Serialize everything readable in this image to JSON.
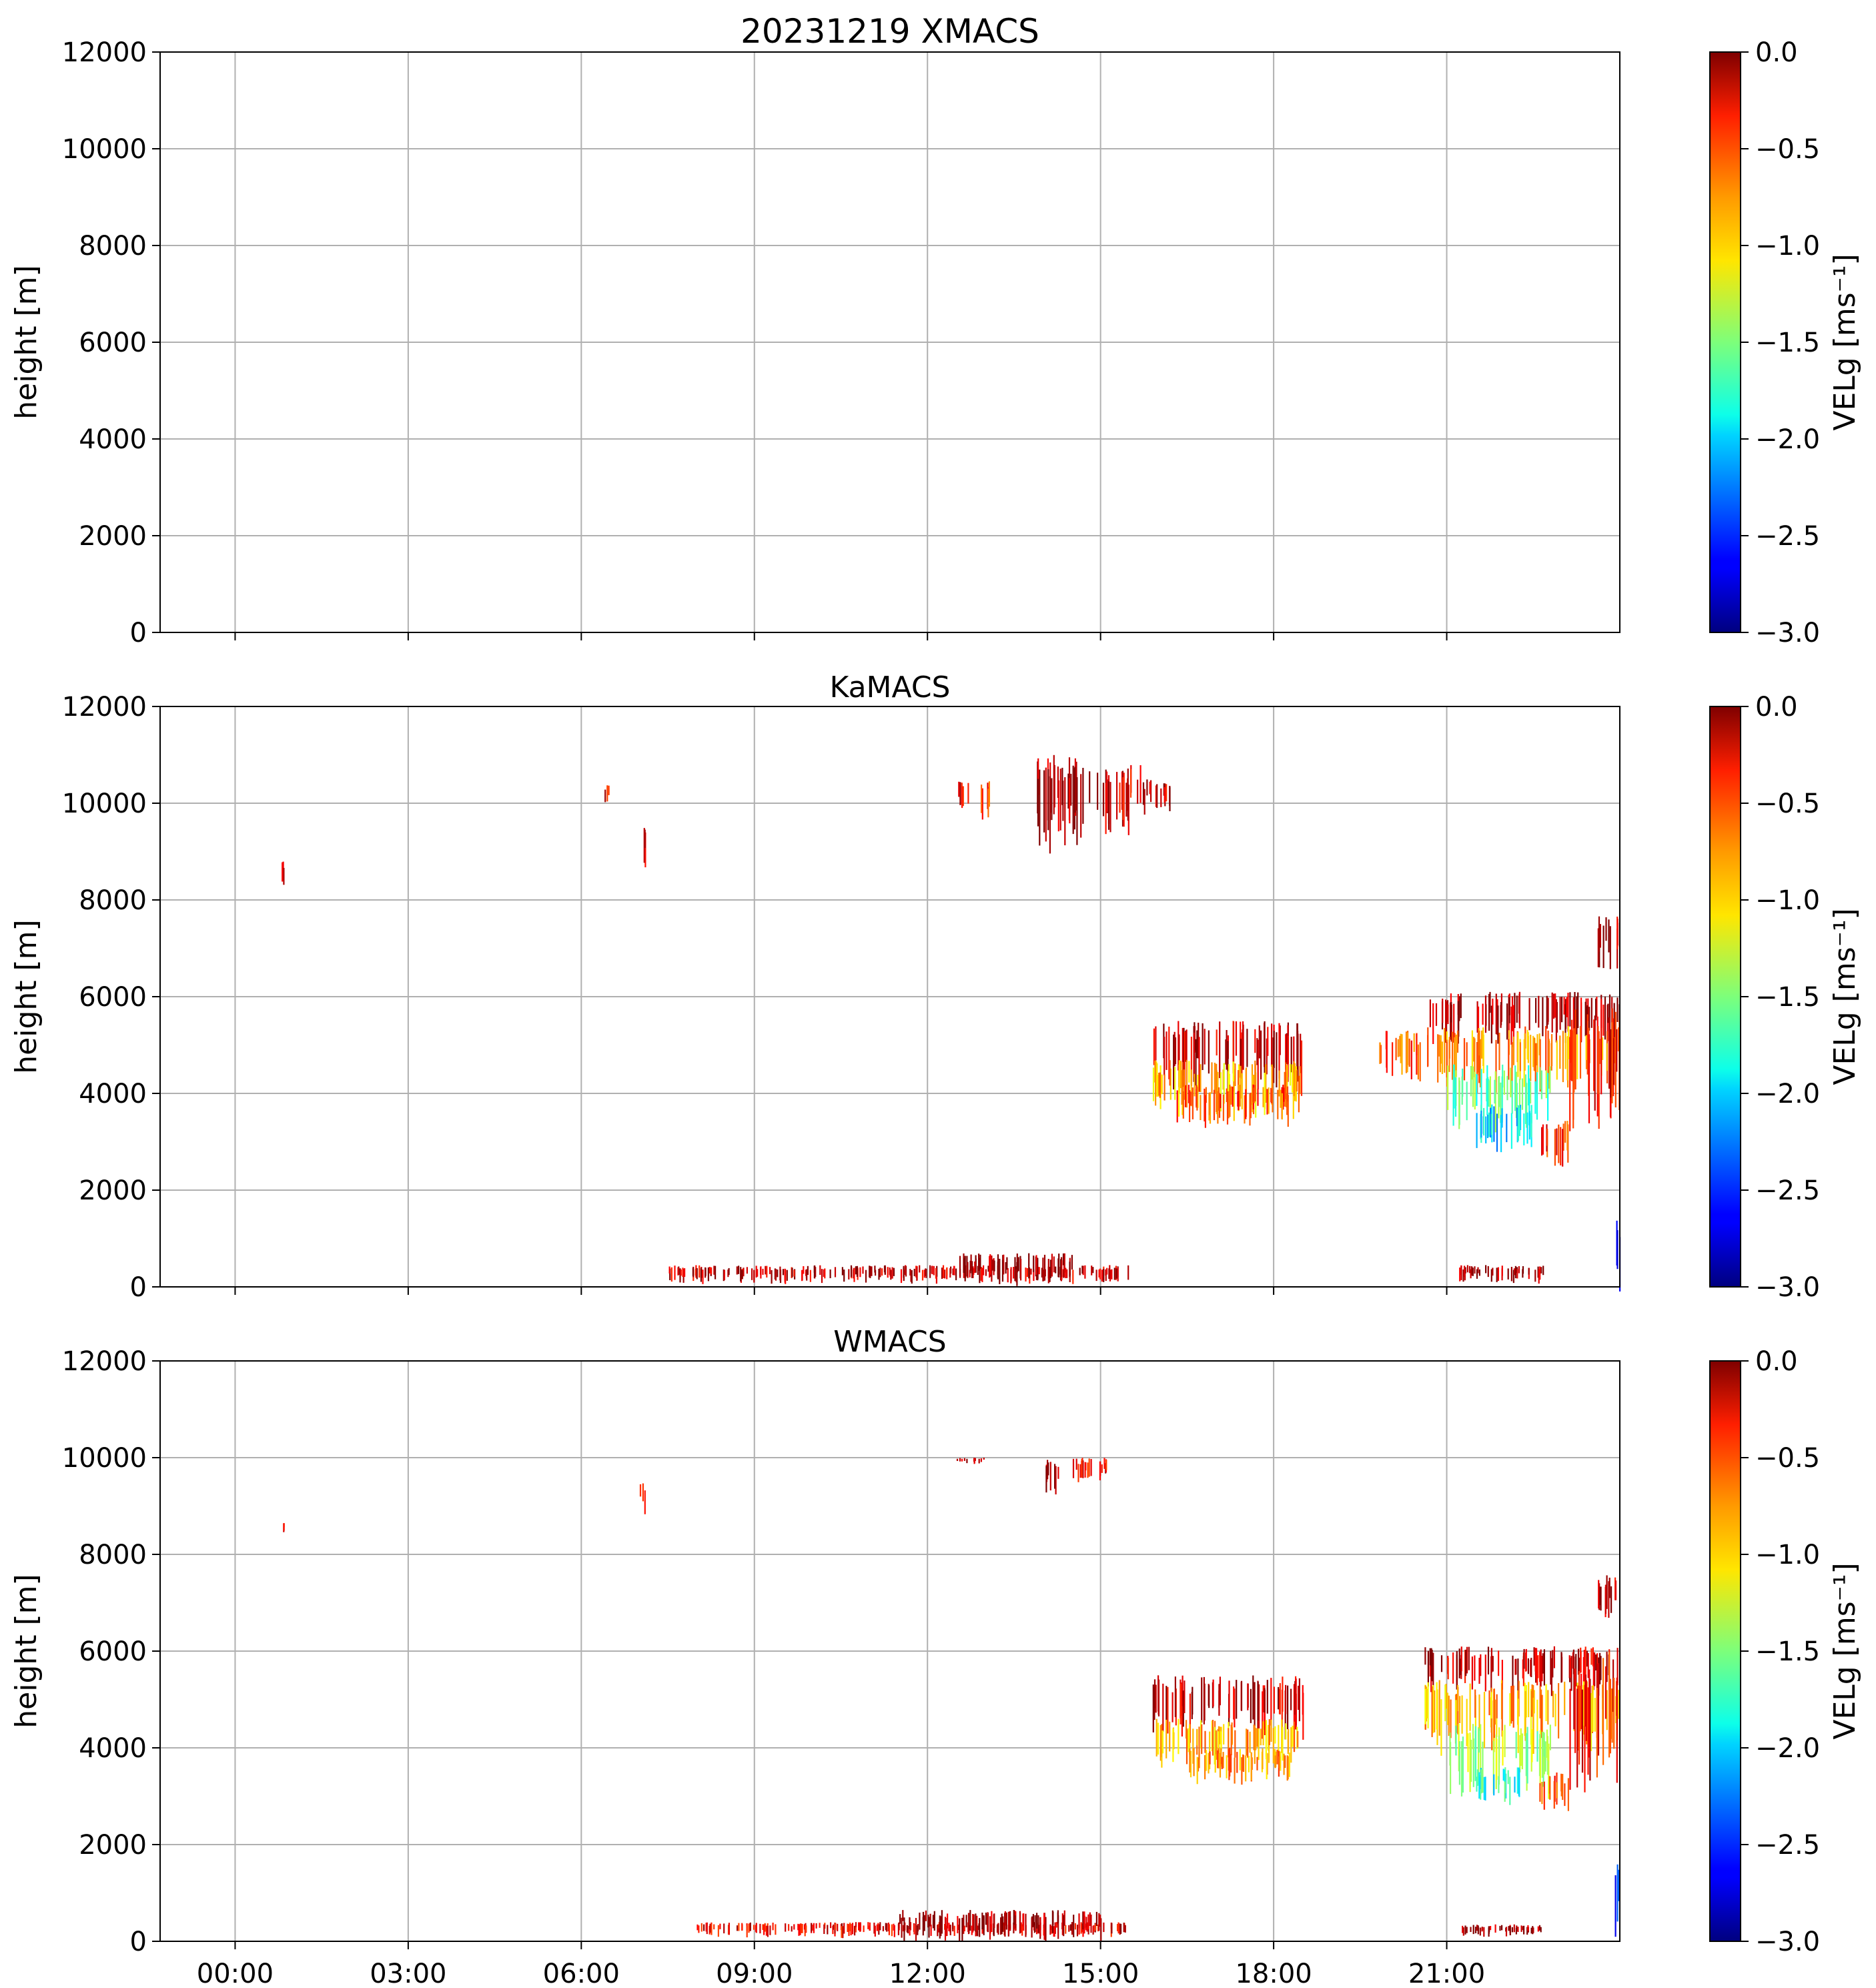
{
  "figure": {
    "title": "20231219 XMACS"
  },
  "chart_data": [
    {
      "type": "heatmap",
      "title": "20231219 XMACS",
      "ylabel": "height [m]",
      "ylim": [
        0,
        12000
      ],
      "yticks": [
        0,
        2000,
        4000,
        6000,
        8000,
        10000,
        12000
      ],
      "xlim_hours": [
        -1.3,
        24
      ],
      "xticks_hours": [
        0,
        3,
        6,
        9,
        12,
        15,
        18,
        21
      ],
      "xticklabels": [],
      "grid": true,
      "colorbar": {
        "label": "VELg [ms⁻¹]",
        "min": -3.0,
        "max": 0.0,
        "ticks": [
          "0.0",
          "−0.5",
          "−1.0",
          "−1.5",
          "−2.0",
          "−2.5",
          "−3.0"
        ],
        "colormap": "jet"
      },
      "regions": []
    },
    {
      "type": "heatmap",
      "title": "KaMACS",
      "ylabel": "height [m]",
      "ylim": [
        0,
        12000
      ],
      "yticks": [
        0,
        2000,
        4000,
        6000,
        8000,
        10000,
        12000
      ],
      "xlim_hours": [
        -1.3,
        24
      ],
      "xticks_hours": [
        0,
        3,
        6,
        9,
        12,
        15,
        18,
        21
      ],
      "xticklabels": [],
      "grid": true,
      "colorbar": {
        "label": "VELg [ms⁻¹]",
        "min": -3.0,
        "max": 0.0,
        "ticks": [
          "0.0",
          "−0.5",
          "−1.0",
          "−1.5",
          "−2.0",
          "−2.5",
          "−3.0"
        ],
        "colormap": "jet"
      },
      "regions": [
        {
          "t0": 12.9,
          "t1": 13.1,
          "h0": 9800,
          "h1": 10500,
          "v": -0.6
        },
        {
          "t0": 12.5,
          "t1": 12.7,
          "h0": 10000,
          "h1": 10500,
          "v": -0.3
        },
        {
          "t0": 13.8,
          "t1": 14.9,
          "h0": 9400,
          "h1": 11000,
          "v": -0.1
        },
        {
          "t0": 14.9,
          "t1": 15.7,
          "h0": 9600,
          "h1": 10800,
          "v": -0.3
        },
        {
          "t0": 15.7,
          "t1": 16.2,
          "h0": 9900,
          "h1": 10500,
          "v": -0.2
        },
        {
          "t0": 7.0,
          "t1": 7.1,
          "h0": 8700,
          "h1": 9600,
          "v": -0.2
        },
        {
          "t0": 0.8,
          "t1": 0.85,
          "h0": 8400,
          "h1": 8800,
          "v": -0.3
        },
        {
          "t0": 6.4,
          "t1": 6.5,
          "h0": 10000,
          "h1": 10400,
          "v": -0.3
        },
        {
          "t0": 15.9,
          "t1": 18.5,
          "h0": 4300,
          "h1": 5500,
          "v": -0.2
        },
        {
          "t0": 15.9,
          "t1": 18.5,
          "h0": 3700,
          "h1": 4700,
          "v": -0.9
        },
        {
          "t0": 16.3,
          "t1": 18.3,
          "h0": 3500,
          "h1": 4200,
          "v": -0.6
        },
        {
          "t0": 19.8,
          "t1": 20.6,
          "h0": 4400,
          "h1": 5300,
          "v": -0.6
        },
        {
          "t0": 20.6,
          "t1": 24.0,
          "h0": 5200,
          "h1": 6100,
          "v": -0.1
        },
        {
          "t0": 20.6,
          "t1": 24.0,
          "h0": 4300,
          "h1": 5400,
          "v": -0.8
        },
        {
          "t0": 21.0,
          "t1": 22.8,
          "h0": 3500,
          "h1": 4600,
          "v": -1.6
        },
        {
          "t0": 21.5,
          "t1": 22.5,
          "h0": 3000,
          "h1": 3800,
          "v": -2.0
        },
        {
          "t0": 22.6,
          "t1": 23.1,
          "h0": 2700,
          "h1": 3500,
          "v": -0.5
        },
        {
          "t0": 23.1,
          "t1": 24.0,
          "h0": 3700,
          "h1": 5800,
          "v": -0.4
        },
        {
          "t0": 23.6,
          "t1": 24.0,
          "h0": 6800,
          "h1": 7700,
          "v": -0.2
        },
        {
          "t0": 23.9,
          "t1": 24.0,
          "h0": 100,
          "h1": 1500,
          "v": -2.6
        },
        {
          "t0": 7.5,
          "t1": 15.5,
          "h0": 150,
          "h1": 450,
          "v": -0.2
        },
        {
          "t0": 12.5,
          "t1": 14.5,
          "h0": 150,
          "h1": 700,
          "v": -0.05
        },
        {
          "t0": 21.2,
          "t1": 22.7,
          "h0": 150,
          "h1": 450,
          "v": -0.1
        }
      ]
    },
    {
      "type": "heatmap",
      "title": "WMACS",
      "ylabel": "height [m]",
      "ylim": [
        0,
        12000
      ],
      "yticks": [
        0,
        2000,
        4000,
        6000,
        8000,
        10000,
        12000
      ],
      "xlim_hours": [
        -1.3,
        24
      ],
      "xticks_hours": [
        0,
        3,
        6,
        9,
        12,
        15,
        18,
        21
      ],
      "xticklabels": [
        "00:00",
        "03:00",
        "06:00",
        "09:00",
        "12:00",
        "15:00",
        "18:00",
        "21:00"
      ],
      "grid": true,
      "colorbar": {
        "label": "VELg [ms⁻¹]",
        "min": -3.0,
        "max": 0.0,
        "ticks": [
          "0.0",
          "−0.5",
          "−1.0",
          "−1.5",
          "−2.0",
          "−2.5",
          "−3.0"
        ],
        "colormap": "jet"
      },
      "regions": [
        {
          "t0": 7.0,
          "t1": 7.1,
          "h0": 8900,
          "h1": 9500,
          "v": -0.3
        },
        {
          "t0": 0.8,
          "t1": 0.85,
          "h0": 8500,
          "h1": 8700,
          "v": -0.5
        },
        {
          "t0": 12.5,
          "t1": 13.0,
          "h0": 9900,
          "h1": 10000,
          "v": -0.3
        },
        {
          "t0": 14.0,
          "t1": 14.3,
          "h0": 9400,
          "h1": 10000,
          "v": -0.1
        },
        {
          "t0": 14.5,
          "t1": 15.2,
          "h0": 9600,
          "h1": 10000,
          "v": -0.3
        },
        {
          "t0": 15.9,
          "t1": 18.5,
          "h0": 4400,
          "h1": 5500,
          "v": -0.2
        },
        {
          "t0": 15.9,
          "t1": 18.5,
          "h0": 3800,
          "h1": 4600,
          "v": -0.9
        },
        {
          "t0": 16.5,
          "t1": 18.3,
          "h0": 3400,
          "h1": 4000,
          "v": -0.8
        },
        {
          "t0": 20.6,
          "t1": 24.0,
          "h0": 5300,
          "h1": 6100,
          "v": -0.2
        },
        {
          "t0": 20.6,
          "t1": 24.0,
          "h0": 4200,
          "h1": 5400,
          "v": -0.9
        },
        {
          "t0": 21.0,
          "t1": 22.8,
          "h0": 3300,
          "h1": 4500,
          "v": -1.4
        },
        {
          "t0": 21.5,
          "t1": 22.3,
          "h0": 3000,
          "h1": 3600,
          "v": -1.8
        },
        {
          "t0": 22.6,
          "t1": 23.1,
          "h0": 2800,
          "h1": 3500,
          "v": -0.5
        },
        {
          "t0": 23.1,
          "t1": 24.0,
          "h0": 3700,
          "h1": 6000,
          "v": -0.4
        },
        {
          "t0": 23.6,
          "t1": 24.0,
          "h0": 6800,
          "h1": 7600,
          "v": -0.2
        },
        {
          "t0": 23.9,
          "t1": 24.0,
          "h0": 100,
          "h1": 1600,
          "v": -2.6
        },
        {
          "t0": 8.0,
          "t1": 15.5,
          "h0": 150,
          "h1": 400,
          "v": -0.3
        },
        {
          "t0": 11.5,
          "t1": 15.0,
          "h0": 150,
          "h1": 650,
          "v": -0.1
        },
        {
          "t0": 21.2,
          "t1": 22.7,
          "h0": 150,
          "h1": 350,
          "v": -0.1
        }
      ]
    }
  ]
}
